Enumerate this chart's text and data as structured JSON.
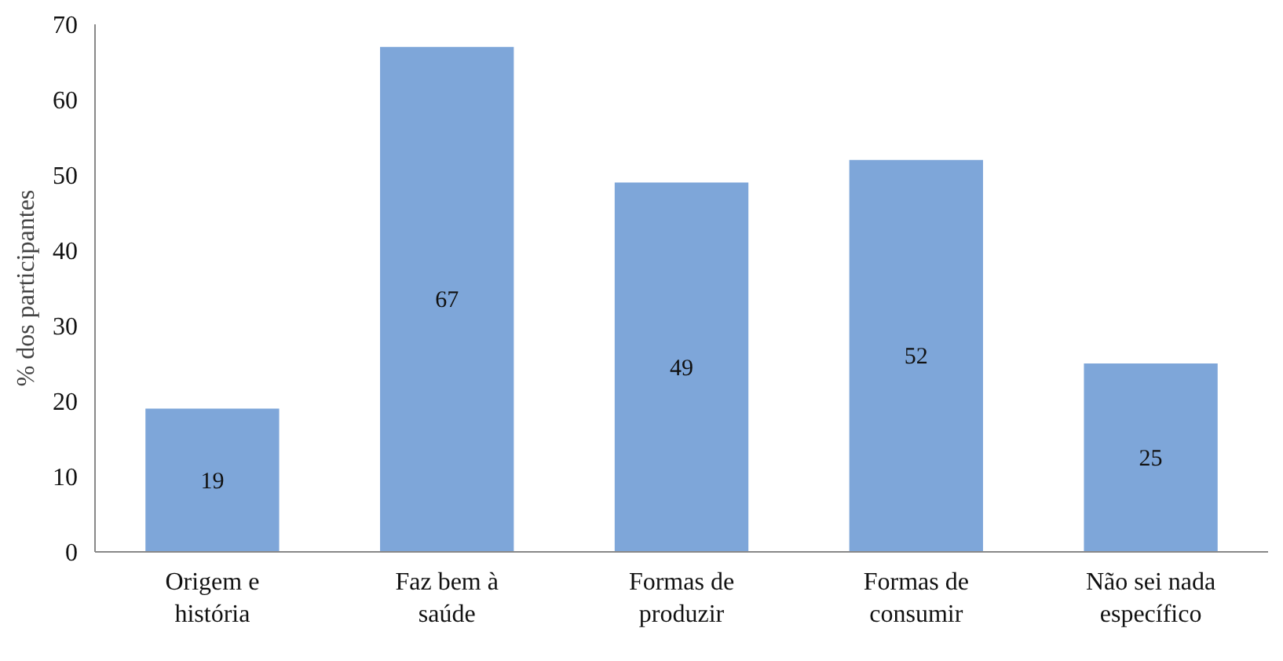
{
  "chart_data": {
    "type": "bar",
    "ylabel": "% dos participantes",
    "categories": [
      "Origem e história",
      "Faz bem à saúde",
      "Formas de produzir",
      "Formas de consumir",
      "Não sei nada específico"
    ],
    "values": [
      19,
      67,
      49,
      52,
      25
    ],
    "color": "#7ea6d9",
    "ylim": [
      0,
      70
    ],
    "yticks": [
      0,
      10,
      20,
      30,
      40,
      50,
      60,
      70
    ],
    "grid": false,
    "data_labels": true
  }
}
